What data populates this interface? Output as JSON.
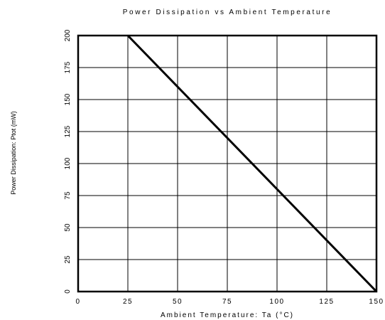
{
  "chart_data": {
    "type": "line",
    "title": "Power Dissipation vs Ambient Temperature",
    "xlabel": "Ambient Temperature: Ta (°C)",
    "ylabel": "Power Dissipation: Ptot (mW)",
    "xlim": [
      0,
      150
    ],
    "ylim": [
      0,
      200
    ],
    "x_ticks": [
      0,
      25,
      50,
      75,
      100,
      125,
      150
    ],
    "y_ticks": [
      0,
      25,
      50,
      75,
      100,
      125,
      150,
      175,
      200
    ],
    "x_tick_labels": [
      "0",
      "25",
      "50",
      "75",
      "100",
      "125",
      "150"
    ],
    "y_tick_labels": [
      "0",
      "25",
      "50",
      "75",
      "100",
      "125",
      "150",
      "175",
      "200"
    ],
    "grid": true,
    "series": [
      {
        "x": [
          25,
          150
        ],
        "y": [
          200,
          0
        ]
      }
    ],
    "colors": {
      "line": "#000000",
      "grid": "#000000",
      "frame": "#000000"
    }
  }
}
